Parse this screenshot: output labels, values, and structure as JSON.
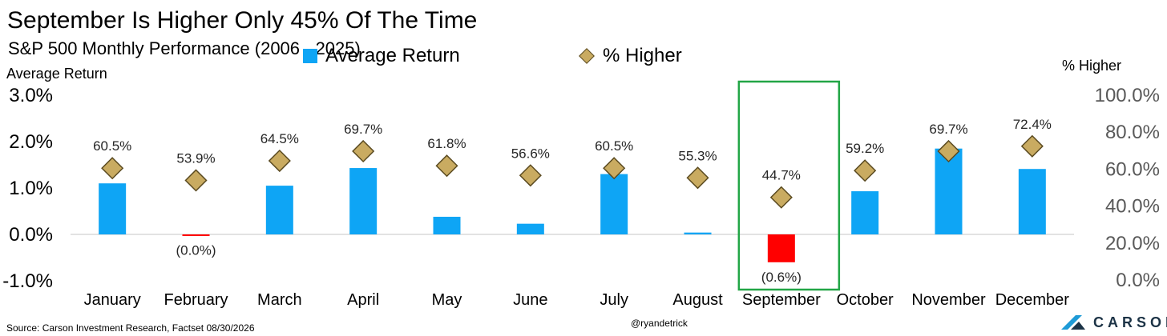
{
  "title": "September Is Higher Only 45% Of The Time",
  "subtitle": "S&P 500 Monthly Performance (2006 - 2025)",
  "legend": {
    "bar_label": "Average Return",
    "diamond_label": "% Higher"
  },
  "footer": {
    "source": "Source: Carson Investment Research, Factset 08/30/2026",
    "handle": "@ryandetrick",
    "logo_text": "CARSON"
  },
  "colors": {
    "bar_positive": "#0ea5f5",
    "bar_negative": "#ff0000",
    "diamond_fill": "#c9ab61",
    "diamond_stroke": "#5a4a20",
    "highlight_box": "#22a646",
    "baseline": "#d9d9d9"
  },
  "chart_data": {
    "type": "bar",
    "categories": [
      "January",
      "February",
      "March",
      "April",
      "May",
      "June",
      "July",
      "August",
      "September",
      "October",
      "November",
      "December"
    ],
    "left_axis": {
      "label": "Average Return",
      "ticks": [
        "3.0%",
        "2.0%",
        "1.0%",
        "0.0%",
        "-1.0%"
      ],
      "ylim": [
        -1.0,
        3.0
      ]
    },
    "right_axis": {
      "label": "% Higher",
      "ticks": [
        "100.0%",
        "80.0%",
        "60.0%",
        "40.0%",
        "20.0%",
        "0.0%"
      ],
      "ylim": [
        0,
        100
      ]
    },
    "series": [
      {
        "name": "Average Return",
        "type": "bar",
        "axis": "left",
        "values": [
          1.1,
          -0.03,
          1.05,
          1.43,
          0.38,
          0.23,
          1.3,
          0.04,
          -0.6,
          0.93,
          1.85,
          1.41
        ],
        "labels": [
          "",
          "(0.0%)",
          "",
          "",
          "",
          "",
          "",
          "",
          "(0.6%)",
          "",
          "",
          ""
        ]
      },
      {
        "name": "% Higher",
        "type": "scatter",
        "marker": "diamond",
        "axis": "right",
        "values": [
          60.5,
          53.9,
          64.5,
          69.7,
          61.8,
          56.6,
          60.5,
          55.3,
          44.7,
          59.2,
          69.7,
          72.4
        ],
        "labels": [
          "60.5%",
          "53.9%",
          "64.5%",
          "69.7%",
          "61.8%",
          "56.6%",
          "60.5%",
          "55.3%",
          "44.7%",
          "59.2%",
          "69.7%",
          "72.4%"
        ]
      }
    ],
    "highlight": "September",
    "grid": false,
    "legend_position": "top"
  }
}
